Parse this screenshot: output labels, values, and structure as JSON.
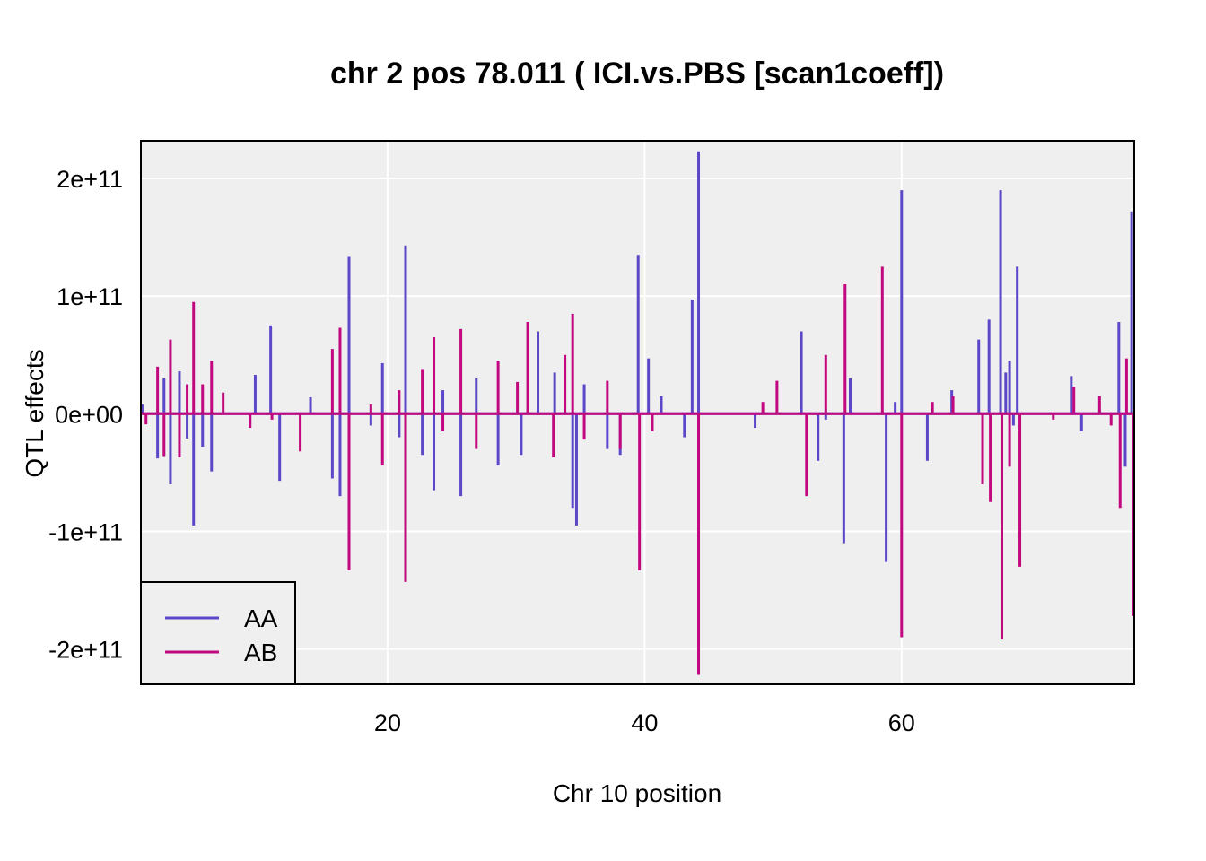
{
  "chart_data": {
    "type": "line",
    "title": "chr 2 pos 78.011 ( ICI.vs.PBS  [scan1coeff])",
    "xlabel": "Chr 10 position",
    "ylabel": "QTL effects",
    "xlim": [
      0.8,
      78.1
    ],
    "ylim": [
      -230000000000,
      232000000000
    ],
    "x_ticks": [
      20,
      40,
      60
    ],
    "x_tick_labels": [
      "20",
      "40",
      "60"
    ],
    "y_ticks": [
      200000000000,
      100000000000,
      0,
      -100000000000,
      -200000000000
    ],
    "y_tick_labels": [
      "2e+11",
      "1e+11",
      "0e+00",
      "-1e+11",
      "-2e+11"
    ],
    "grid": true,
    "legend_position": "bottom-left",
    "background": "#efefef",
    "colors": {
      "AA": "#5a48c8",
      "AB": "#c2087f"
    },
    "series": [
      {
        "name": "AA",
        "spikes": [
          [
            0.9,
            8000000000
          ],
          [
            2.1,
            -38000000000
          ],
          [
            2.6,
            30000000000
          ],
          [
            3.1,
            -60000000000
          ],
          [
            3.8,
            36000000000
          ],
          [
            4.4,
            -21000000000
          ],
          [
            4.9,
            -95000000000
          ],
          [
            5.6,
            -28000000000
          ],
          [
            6.3,
            -49000000000
          ],
          [
            9.7,
            33000000000
          ],
          [
            10.9,
            75000000000
          ],
          [
            11.6,
            -57000000000
          ],
          [
            14.0,
            14000000000
          ],
          [
            15.7,
            -55000000000
          ],
          [
            16.3,
            -70000000000
          ],
          [
            17.0,
            134000000000
          ],
          [
            18.7,
            -10000000000
          ],
          [
            19.6,
            43000000000
          ],
          [
            20.9,
            -20000000000
          ],
          [
            21.4,
            143000000000
          ],
          [
            22.7,
            -35000000000
          ],
          [
            23.6,
            -65000000000
          ],
          [
            24.3,
            20000000000
          ],
          [
            25.7,
            -70000000000
          ],
          [
            26.9,
            30000000000
          ],
          [
            28.6,
            -44000000000
          ],
          [
            30.4,
            -35000000000
          ],
          [
            31.7,
            70000000000
          ],
          [
            33.0,
            35000000000
          ],
          [
            34.4,
            -80000000000
          ],
          [
            34.7,
            -95000000000
          ],
          [
            35.3,
            25000000000
          ],
          [
            37.1,
            -30000000000
          ],
          [
            38.1,
            -35000000000
          ],
          [
            39.5,
            135000000000
          ],
          [
            40.3,
            47000000000
          ],
          [
            41.3,
            15000000000
          ],
          [
            43.1,
            -20000000000
          ],
          [
            43.7,
            97000000000
          ],
          [
            44.2,
            223000000000
          ],
          [
            48.6,
            -12000000000
          ],
          [
            52.2,
            70000000000
          ],
          [
            53.5,
            -40000000000
          ],
          [
            54.1,
            -5000000000
          ],
          [
            55.5,
            -110000000000
          ],
          [
            56.0,
            30000000000
          ],
          [
            58.8,
            -126000000000
          ],
          [
            59.5,
            10000000000
          ],
          [
            60.0,
            190000000000
          ],
          [
            62.0,
            -40000000000
          ],
          [
            63.9,
            20000000000
          ],
          [
            66.0,
            63000000000
          ],
          [
            66.8,
            80000000000
          ],
          [
            67.7,
            190000000000
          ],
          [
            68.1,
            35000000000
          ],
          [
            68.4,
            45000000000
          ],
          [
            68.7,
            -10000000000
          ],
          [
            69.0,
            125000000000
          ],
          [
            73.2,
            32000000000
          ],
          [
            74.0,
            -15000000000
          ],
          [
            75.4,
            3000000000
          ],
          [
            76.9,
            78000000000
          ],
          [
            77.4,
            -45000000000
          ],
          [
            77.9,
            172000000000
          ]
        ]
      },
      {
        "name": "AB",
        "spikes": [
          [
            1.2,
            -9000000000
          ],
          [
            2.1,
            40000000000
          ],
          [
            2.6,
            -36000000000
          ],
          [
            3.1,
            63000000000
          ],
          [
            3.8,
            -37000000000
          ],
          [
            4.4,
            25000000000
          ],
          [
            4.9,
            95000000000
          ],
          [
            5.6,
            25000000000
          ],
          [
            6.3,
            45000000000
          ],
          [
            7.2,
            18000000000
          ],
          [
            9.3,
            -12000000000
          ],
          [
            11.0,
            -5000000000
          ],
          [
            13.2,
            -32000000000
          ],
          [
            15.7,
            55000000000
          ],
          [
            16.3,
            73000000000
          ],
          [
            17.0,
            -133000000000
          ],
          [
            18.7,
            8000000000
          ],
          [
            19.6,
            -44000000000
          ],
          [
            20.9,
            20000000000
          ],
          [
            21.4,
            -143000000000
          ],
          [
            22.7,
            38000000000
          ],
          [
            23.6,
            65000000000
          ],
          [
            24.3,
            -15000000000
          ],
          [
            25.7,
            72000000000
          ],
          [
            26.9,
            -30000000000
          ],
          [
            28.6,
            45000000000
          ],
          [
            30.1,
            27000000000
          ],
          [
            30.9,
            78000000000
          ],
          [
            32.9,
            -37000000000
          ],
          [
            33.8,
            50000000000
          ],
          [
            34.4,
            85000000000
          ],
          [
            35.3,
            -22000000000
          ],
          [
            37.1,
            28000000000
          ],
          [
            38.1,
            -30000000000
          ],
          [
            39.6,
            -133000000000
          ],
          [
            40.6,
            -15000000000
          ],
          [
            44.2,
            -222000000000
          ],
          [
            49.2,
            10000000000
          ],
          [
            50.3,
            28000000000
          ],
          [
            52.6,
            -70000000000
          ],
          [
            54.1,
            50000000000
          ],
          [
            55.6,
            110000000000
          ],
          [
            58.5,
            125000000000
          ],
          [
            60.0,
            -190000000000
          ],
          [
            62.4,
            10000000000
          ],
          [
            64.0,
            15000000000
          ],
          [
            66.3,
            -60000000000
          ],
          [
            66.9,
            -75000000000
          ],
          [
            67.8,
            -192000000000
          ],
          [
            68.4,
            -45000000000
          ],
          [
            69.2,
            -130000000000
          ],
          [
            71.8,
            -5000000000
          ],
          [
            73.4,
            23000000000
          ],
          [
            75.4,
            15000000000
          ],
          [
            76.3,
            -10000000000
          ],
          [
            77.0,
            -80000000000
          ],
          [
            77.5,
            47000000000
          ],
          [
            78.0,
            -172000000000
          ]
        ]
      }
    ]
  }
}
